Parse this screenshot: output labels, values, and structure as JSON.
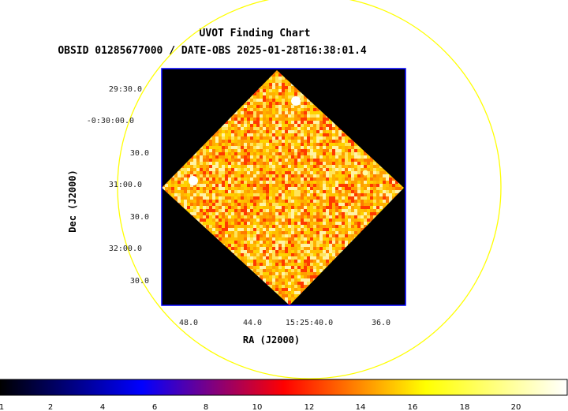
{
  "chart_data": {
    "type": "heatmap",
    "title": "UVOT Finding Chart",
    "subtitle": "OBSID 01285677000 / DATE-OBS 2025-01-28T16:38:01.4",
    "xlabel": "RA (J2000)",
    "ylabel": "Dec (J2000)",
    "x_tick_labels": [
      "48.0",
      "44.0",
      "15:25:40.0",
      "36.0"
    ],
    "y_tick_labels": [
      "29:30.0",
      "-0:30:00.0",
      "30.0",
      "31:00.0",
      "30.0",
      "32:00.0",
      "30.0"
    ],
    "colorbar": {
      "colormap": "heat",
      "range": [
        0,
        22
      ],
      "tick_labels": [
        "1",
        "2",
        "4",
        "6",
        "8",
        "10",
        "12",
        "14",
        "16",
        "18",
        "20"
      ]
    },
    "sources": [
      {
        "kind": "bright-source"
      },
      {
        "kind": "bright-source"
      },
      {
        "kind": "faint-source"
      }
    ],
    "overlays": {
      "circle_color": "#ffff00",
      "frame_color": "#0000ff"
    },
    "colors": {
      "background": "#000000",
      "frame": "#0000ff",
      "circle": "#ffff00"
    }
  }
}
